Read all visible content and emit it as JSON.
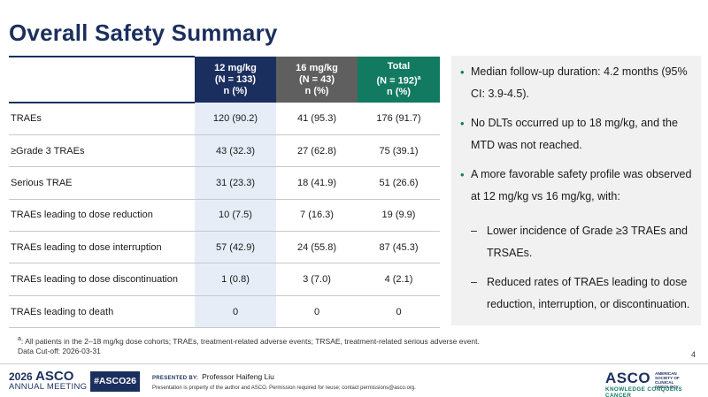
{
  "slide": {
    "title": "Overall Safety Summary",
    "page_number": "4"
  },
  "table": {
    "columns": [
      {
        "line1": "12 mg/kg",
        "line2": "(N = 133)",
        "line3": "n (%)",
        "color": "#1b2f5e"
      },
      {
        "line1": "16 mg/kg",
        "line2": "(N = 43)",
        "line3": "n (%)",
        "color": "#5f5f5f"
      },
      {
        "line1": "Total",
        "line2": "(N = 192)",
        "sup": "a",
        "line3": "n (%)",
        "color": "#127a60"
      }
    ],
    "rows": [
      {
        "label": "TRAEs",
        "values": [
          "120 (90.2)",
          "41 (95.3)",
          "176 (91.7)"
        ]
      },
      {
        "label": "≥Grade 3 TRAEs",
        "values": [
          "43 (32.3)",
          "27 (62.8)",
          "75 (39.1)"
        ]
      },
      {
        "label": "Serious TRAE",
        "values": [
          "31 (23.3)",
          "18 (41.9)",
          "51 (26.6)"
        ]
      },
      {
        "label": "TRAEs leading to dose reduction",
        "values": [
          "10 (7.5)",
          "7 (16.3)",
          "19 (9.9)"
        ]
      },
      {
        "label": "TRAEs leading to dose interruption",
        "values": [
          "57 (42.9)",
          "24 (55.8)",
          "87 (45.3)"
        ]
      },
      {
        "label": "TRAEs leading to dose discontinuation",
        "values": [
          "1 (0.8)",
          "3 (7.0)",
          "4 (2.1)"
        ]
      },
      {
        "label": "TRAEs leading to death",
        "values": [
          "0",
          "0",
          "0"
        ]
      }
    ]
  },
  "summary": {
    "bullets": [
      "Median follow-up duration: 4.2 months (95% CI: 3.9-4.5).",
      "No DLTs occurred up to 18 mg/kg, and the MTD was not reached.",
      "A more favorable safety profile was observed at 12 mg/kg vs 16 mg/kg, with:"
    ],
    "sub_bullets": [
      "Lower incidence of Grade ≥3 TRAEs and TRSAEs.",
      "Reduced rates of TRAEs leading to dose reduction, interruption, or discontinuation."
    ]
  },
  "footnotes": {
    "a_marker": "a",
    "a_text": ": All patients in the 2–18 mg/kg dose cohorts; TRAEs, treatment-related adverse events; TRSAE, treatment-related serious adverse event.",
    "cutoff": "Data Cut-off: 2026-03-31"
  },
  "footer": {
    "meeting_year": "2026",
    "meeting_name": "ASCO",
    "meeting_sub": "ANNUAL MEETING",
    "hashtag": "#ASCO26",
    "presented_by_label": "PRESENTED BY:",
    "presenter": "Professor Haifeng Liu",
    "property_notice": "Presentation is property of the author and ASCO. Permission required for reuse; contact permissions@asco.org.",
    "logo_main": "ASCO",
    "logo_society_line1": "AMERICAN SOCIETY OF",
    "logo_society_line2": "CLINICAL ONCOLOGY",
    "logo_tagline": "KNOWLEDGE CONQUERS CANCER"
  }
}
